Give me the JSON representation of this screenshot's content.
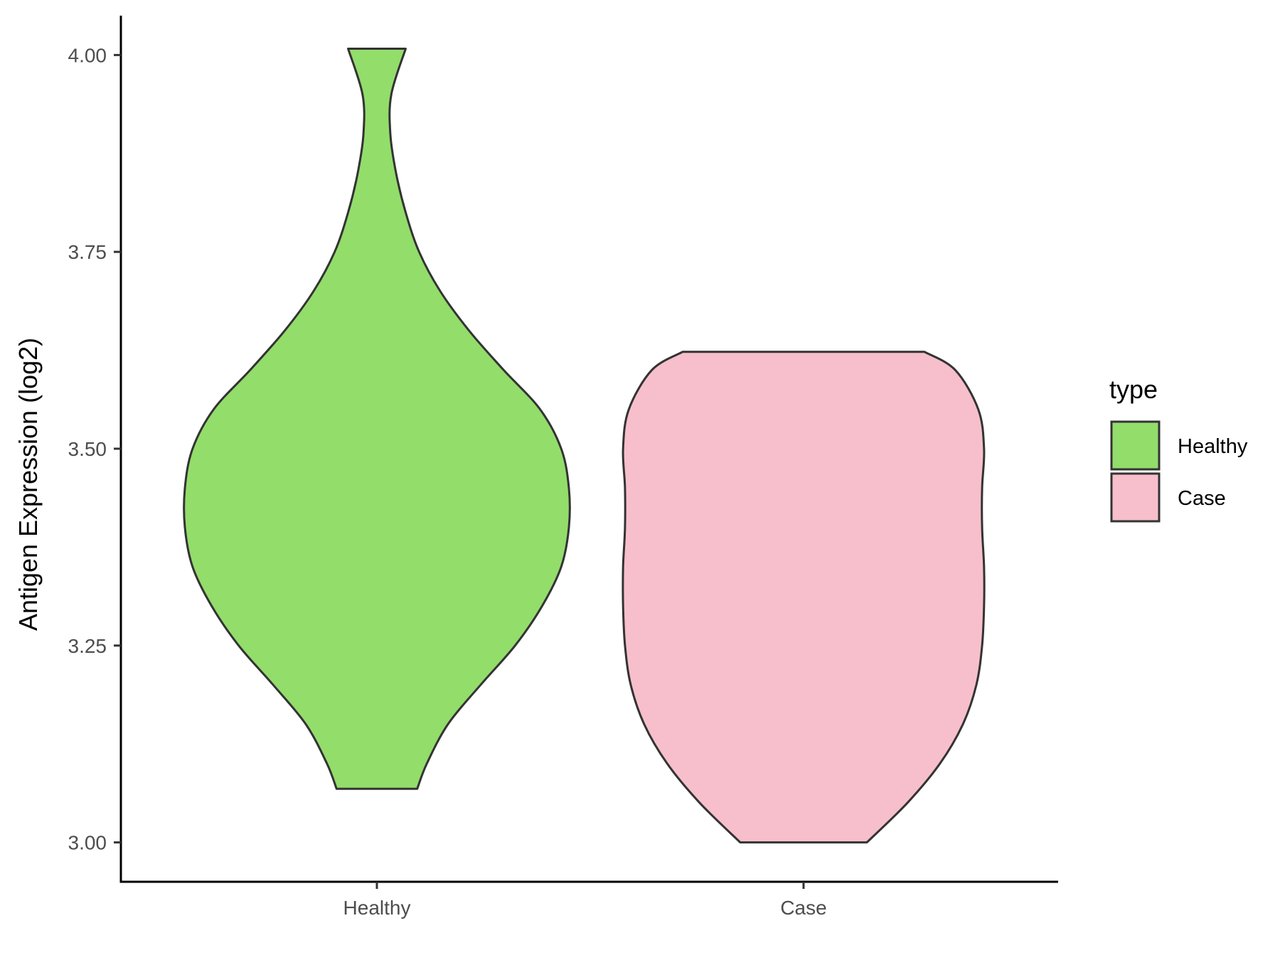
{
  "chart_data": {
    "type": "violin",
    "title": "",
    "xlabel": "",
    "ylabel": "Antigen Expression (log2)",
    "ylim": [
      2.95,
      4.05
    ],
    "yticks": [
      "3.00",
      "3.25",
      "3.50",
      "3.75",
      "4.00"
    ],
    "categories": [
      "Healthy",
      "Case"
    ],
    "grid": false,
    "legend": {
      "title": "type",
      "placement": "right",
      "entries": [
        "Healthy",
        "Case"
      ]
    },
    "series": [
      {
        "name": "Healthy",
        "color": "#93dd6b",
        "min": 3.068,
        "max": 4.008,
        "density_profile": [
          [
            3.068,
            0.21
          ],
          [
            3.1,
            0.26
          ],
          [
            3.15,
            0.37
          ],
          [
            3.2,
            0.54
          ],
          [
            3.25,
            0.72
          ],
          [
            3.3,
            0.86
          ],
          [
            3.35,
            0.96
          ],
          [
            3.4,
            1.0
          ],
          [
            3.45,
            1.0
          ],
          [
            3.5,
            0.96
          ],
          [
            3.55,
            0.85
          ],
          [
            3.6,
            0.66
          ],
          [
            3.65,
            0.48
          ],
          [
            3.7,
            0.33
          ],
          [
            3.75,
            0.22
          ],
          [
            3.8,
            0.15
          ],
          [
            3.85,
            0.1
          ],
          [
            3.9,
            0.07
          ],
          [
            3.95,
            0.075
          ],
          [
            4.008,
            0.15
          ]
        ]
      },
      {
        "name": "Case",
        "color": "#f7bfcb",
        "min": 3.0,
        "max": 3.623,
        "density_profile": [
          [
            3.0,
            0.33
          ],
          [
            3.05,
            0.54
          ],
          [
            3.1,
            0.71
          ],
          [
            3.15,
            0.83
          ],
          [
            3.2,
            0.9
          ],
          [
            3.25,
            0.93
          ],
          [
            3.3,
            0.94
          ],
          [
            3.35,
            0.94
          ],
          [
            3.4,
            0.93
          ],
          [
            3.45,
            0.93
          ],
          [
            3.5,
            0.94
          ],
          [
            3.55,
            0.91
          ],
          [
            3.6,
            0.79
          ],
          [
            3.623,
            0.63
          ]
        ]
      }
    ]
  }
}
